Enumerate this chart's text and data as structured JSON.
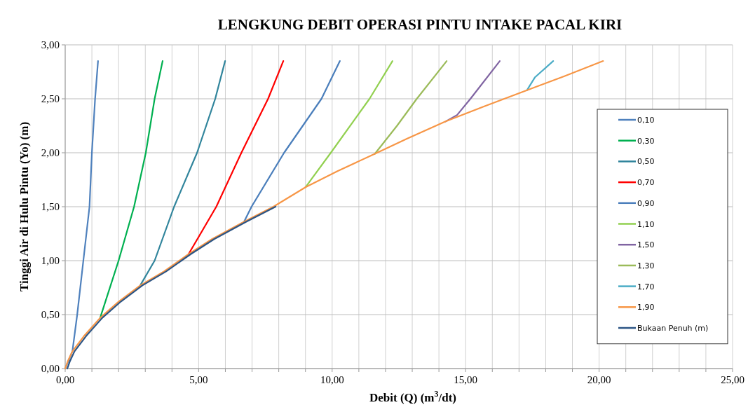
{
  "chart_data": {
    "type": "line",
    "title": "LENGKUNG DEBIT OPERASI PINTU INTAKE PACAL KIRI",
    "xlabel": "Debit (Q) (m$^{3}$/dt)",
    "ylabel": "Tinggi Air di Hulu Pintu (Yo) (m)",
    "xlim": [
      0,
      25
    ],
    "ylim": [
      0,
      3
    ],
    "xticks": [
      {
        "value": 0,
        "label": "0,00"
      },
      {
        "value": 1,
        "label": null
      },
      {
        "value": 2,
        "label": null
      },
      {
        "value": 3,
        "label": null
      },
      {
        "value": 4,
        "label": null
      },
      {
        "value": 5,
        "label": "5,00"
      },
      {
        "value": 6,
        "label": null
      },
      {
        "value": 7,
        "label": null
      },
      {
        "value": 8,
        "label": null
      },
      {
        "value": 9,
        "label": null
      },
      {
        "value": 10,
        "label": "10,00"
      },
      {
        "value": 11,
        "label": null
      },
      {
        "value": 12,
        "label": null
      },
      {
        "value": 13,
        "label": null
      },
      {
        "value": 14,
        "label": null
      },
      {
        "value": 15,
        "label": "15,00"
      },
      {
        "value": 16,
        "label": null
      },
      {
        "value": 17,
        "label": null
      },
      {
        "value": 18,
        "label": null
      },
      {
        "value": 19,
        "label": null
      },
      {
        "value": 20,
        "label": "20,00"
      },
      {
        "value": 21,
        "label": null
      },
      {
        "value": 22,
        "label": null
      },
      {
        "value": 23,
        "label": null
      },
      {
        "value": 24,
        "label": null
      },
      {
        "value": 25,
        "label": "25,00"
      }
    ],
    "yticks": [
      {
        "value": 0,
        "label": "0,00"
      },
      {
        "value": 0.5,
        "label": "0,50"
      },
      {
        "value": 1,
        "label": "1,00"
      },
      {
        "value": 1.5,
        "label": "1,50"
      },
      {
        "value": 2,
        "label": "2,00"
      },
      {
        "value": 2.5,
        "label": "2,50"
      },
      {
        "value": 3,
        "label": "3,00"
      }
    ],
    "grid": true,
    "legend": "right",
    "marker": "none",
    "line_style": "solid",
    "series": [
      {
        "name": "0,10",
        "color": "#4f81bd",
        "x": [
          0,
          0.27,
          0.45,
          0.68,
          0.91,
          1.0,
          1.12,
          1.23
        ],
        "values": [
          0,
          0.16,
          0.5,
          1.0,
          1.5,
          2.0,
          2.5,
          2.85
        ]
      },
      {
        "name": "0,30",
        "color": "#00b050",
        "x": [
          1.31,
          2.0,
          2.58,
          3.02,
          3.35,
          3.65
        ],
        "values": [
          0.47,
          1.0,
          1.5,
          2.0,
          2.5,
          2.85
        ]
      },
      {
        "name": "0,50",
        "color": "#31859c",
        "x": [
          2.81,
          3.35,
          4.08,
          4.94,
          5.62,
          5.99
        ],
        "values": [
          0.77,
          1.0,
          1.5,
          2.0,
          2.5,
          2.85
        ]
      },
      {
        "name": "0,70",
        "color": "#ff0000",
        "x": [
          4.62,
          5.07,
          5.66,
          6.6,
          7.6,
          8.17
        ],
        "values": [
          1.06,
          1.25,
          1.5,
          2.0,
          2.5,
          2.85
        ]
      },
      {
        "name": "0,90",
        "color": "#4a7ebb",
        "x": [
          6.7,
          6.98,
          8.2,
          9.6,
          10.29
        ],
        "values": [
          1.36,
          1.5,
          2.0,
          2.5,
          2.85
        ]
      },
      {
        "name": "1,10",
        "color": "#92d050",
        "x": [
          9.0,
          9.95,
          11.4,
          12.26
        ],
        "values": [
          1.68,
          2.0,
          2.5,
          2.85
        ]
      },
      {
        "name": "1,50",
        "color": "#8064a2",
        "x": [
          14.25,
          14.68,
          15.18,
          16.28
        ],
        "values": [
          2.29,
          2.35,
          2.5,
          2.85
        ]
      },
      {
        "name": "1,30",
        "color": "#9bbb59",
        "x": [
          11.6,
          12.43,
          13.17,
          14.29
        ],
        "values": [
          1.99,
          2.25,
          2.5,
          2.85
        ]
      },
      {
        "name": "1,70",
        "color": "#4bacc6",
        "x": [
          17.3,
          17.6,
          18.28
        ],
        "values": [
          2.58,
          2.7,
          2.85
        ]
      },
      {
        "name": "1,90",
        "color": "#f79646",
        "x": [
          0,
          0.1,
          0.27,
          0.7,
          1.31,
          2.0,
          2.81,
          3.7,
          4.62,
          5.5,
          6.7,
          7.8,
          9.0,
          10.2,
          11.6,
          12.8,
          14.25,
          15.7,
          17.3,
          18.7,
          20.15
        ],
        "values": [
          0,
          0.07,
          0.16,
          0.3,
          0.47,
          0.62,
          0.77,
          0.9,
          1.06,
          1.2,
          1.36,
          1.5,
          1.68,
          1.83,
          1.99,
          2.13,
          2.29,
          2.43,
          2.58,
          2.71,
          2.85
        ]
      },
      {
        "name": "Bukaan Penuh (m)",
        "color": "#2c5585",
        "x": [
          0.08,
          0.18,
          0.35,
          0.78,
          1.39,
          2.08,
          2.89,
          3.78,
          4.7,
          5.58,
          6.78,
          7.88
        ],
        "values": [
          0,
          0.07,
          0.16,
          0.3,
          0.47,
          0.62,
          0.77,
          0.9,
          1.06,
          1.2,
          1.36,
          1.5
        ]
      }
    ]
  }
}
